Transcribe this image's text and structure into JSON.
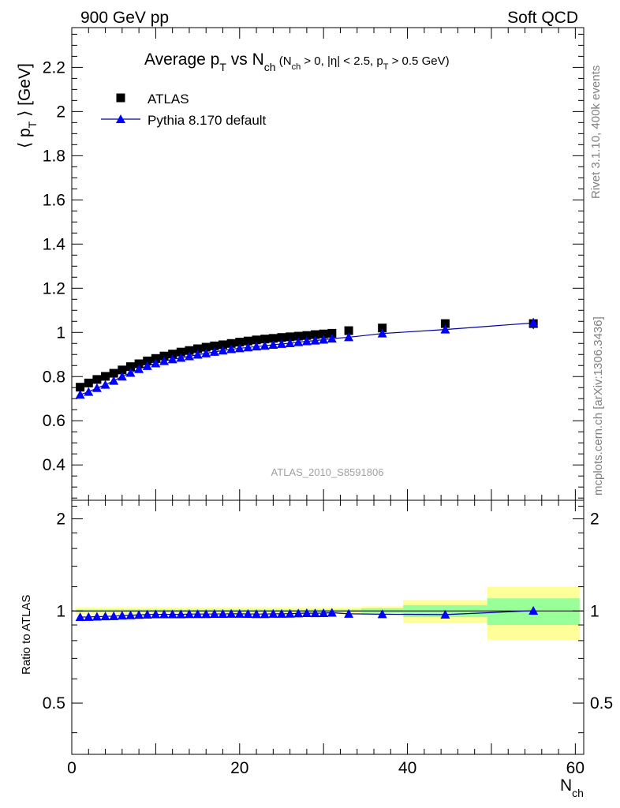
{
  "header": {
    "left": "900 GeV pp",
    "right": "Soft QCD"
  },
  "side_labels": {
    "rivet": "Rivet 3.1.10,  400k events",
    "mcplots": "mcplots.cern.ch [arXiv:1306.3436]"
  },
  "colors": {
    "atlas": "#000000",
    "pythia": "#0000ff",
    "pythia_line": "#00009a",
    "band_inner": "#99ff99",
    "band_outer": "#ffff99"
  },
  "chart_data": [
    {
      "type": "scatter",
      "title": "Average p_T vs N_ch (N_ch > 0, |η| < 2.5, p_T > 0.5 GeV)",
      "ylabel": "⟨ p_T ⟩ [GeV]",
      "xlabel": "",
      "watermark": "ATLAS_2010_S8591806",
      "xlim": [
        0,
        61
      ],
      "ylim": [
        0.24,
        2.38
      ],
      "yticks": [
        "0.4",
        "0.6",
        "0.8",
        "1",
        "1.2",
        "1.4",
        "1.6",
        "1.8",
        "2",
        "2.2"
      ],
      "legend_placement": "top-left",
      "series": [
        {
          "name": "ATLAS",
          "marker": "square",
          "x": [
            1,
            2,
            3,
            4,
            5,
            6,
            7,
            8,
            9,
            10,
            11,
            12,
            13,
            14,
            15,
            16,
            17,
            18,
            19,
            20,
            21,
            22,
            23,
            24,
            25,
            26,
            27,
            28,
            29,
            30,
            31,
            33,
            37,
            44.5,
            55
          ],
          "y": [
            0.752,
            0.771,
            0.787,
            0.801,
            0.815,
            0.83,
            0.845,
            0.858,
            0.871,
            0.882,
            0.893,
            0.902,
            0.911,
            0.918,
            0.926,
            0.933,
            0.939,
            0.944,
            0.95,
            0.956,
            0.961,
            0.966,
            0.97,
            0.973,
            0.977,
            0.98,
            0.983,
            0.986,
            0.99,
            0.993,
            0.996,
            1.008,
            1.02,
            1.04,
            1.04
          ]
        },
        {
          "name": "Pythia 8.170 default",
          "marker": "triangle",
          "x": [
            1,
            2,
            3,
            4,
            5,
            6,
            7,
            8,
            9,
            10,
            11,
            12,
            13,
            14,
            15,
            16,
            17,
            18,
            19,
            20,
            21,
            22,
            23,
            24,
            25,
            26,
            27,
            28,
            29,
            30,
            31,
            33,
            37,
            44.5,
            55
          ],
          "y": [
            0.718,
            0.731,
            0.748,
            0.763,
            0.781,
            0.8,
            0.817,
            0.834,
            0.848,
            0.86,
            0.87,
            0.878,
            0.885,
            0.892,
            0.899,
            0.905,
            0.912,
            0.918,
            0.924,
            0.928,
            0.932,
            0.936,
            0.94,
            0.944,
            0.948,
            0.951,
            0.956,
            0.96,
            0.963,
            0.967,
            0.972,
            0.978,
            0.995,
            1.013,
            1.043
          ]
        }
      ]
    },
    {
      "type": "scatter",
      "title": "",
      "ylabel": "Ratio to ATLAS",
      "xlabel": "N_ch",
      "xlim": [
        0,
        61
      ],
      "ylim": [
        0.34,
        2.3
      ],
      "log_y": true,
      "yticks": [
        "0.5",
        "1",
        "2"
      ],
      "xticks": [
        "0",
        "20",
        "40",
        "60"
      ],
      "series": [
        {
          "name": "Pythia 8.170 default",
          "marker": "triangle",
          "x": [
            1,
            2,
            3,
            4,
            5,
            6,
            7,
            8,
            9,
            10,
            11,
            12,
            13,
            14,
            15,
            16,
            17,
            18,
            19,
            20,
            21,
            22,
            23,
            24,
            25,
            26,
            27,
            28,
            29,
            30,
            31,
            33,
            37,
            44.5,
            55
          ],
          "y": [
            0.955,
            0.956,
            0.958,
            0.96,
            0.962,
            0.966,
            0.968,
            0.971,
            0.973,
            0.975,
            0.975,
            0.975,
            0.975,
            0.977,
            0.977,
            0.977,
            0.978,
            0.978,
            0.979,
            0.979,
            0.978,
            0.977,
            0.977,
            0.979,
            0.979,
            0.98,
            0.982,
            0.984,
            0.983,
            0.984,
            0.987,
            0.979,
            0.976,
            0.973,
            1.002
          ]
        }
      ],
      "bands": [
        {
          "x0": 0.5,
          "x1": 34.5,
          "inner": [
            0.99,
            1.01
          ],
          "outer": [
            0.975,
            1.025
          ]
        },
        {
          "x0": 34.5,
          "x1": 39.5,
          "inner": [
            0.985,
            1.02
          ],
          "outer": [
            0.965,
            1.035
          ]
        },
        {
          "x0": 39.5,
          "x1": 49.5,
          "inner": [
            0.955,
            1.045
          ],
          "outer": [
            0.915,
            1.085
          ]
        },
        {
          "x0": 49.5,
          "x1": 60.5,
          "inner": [
            0.9,
            1.1
          ],
          "outer": [
            0.805,
            1.2
          ]
        }
      ]
    }
  ]
}
